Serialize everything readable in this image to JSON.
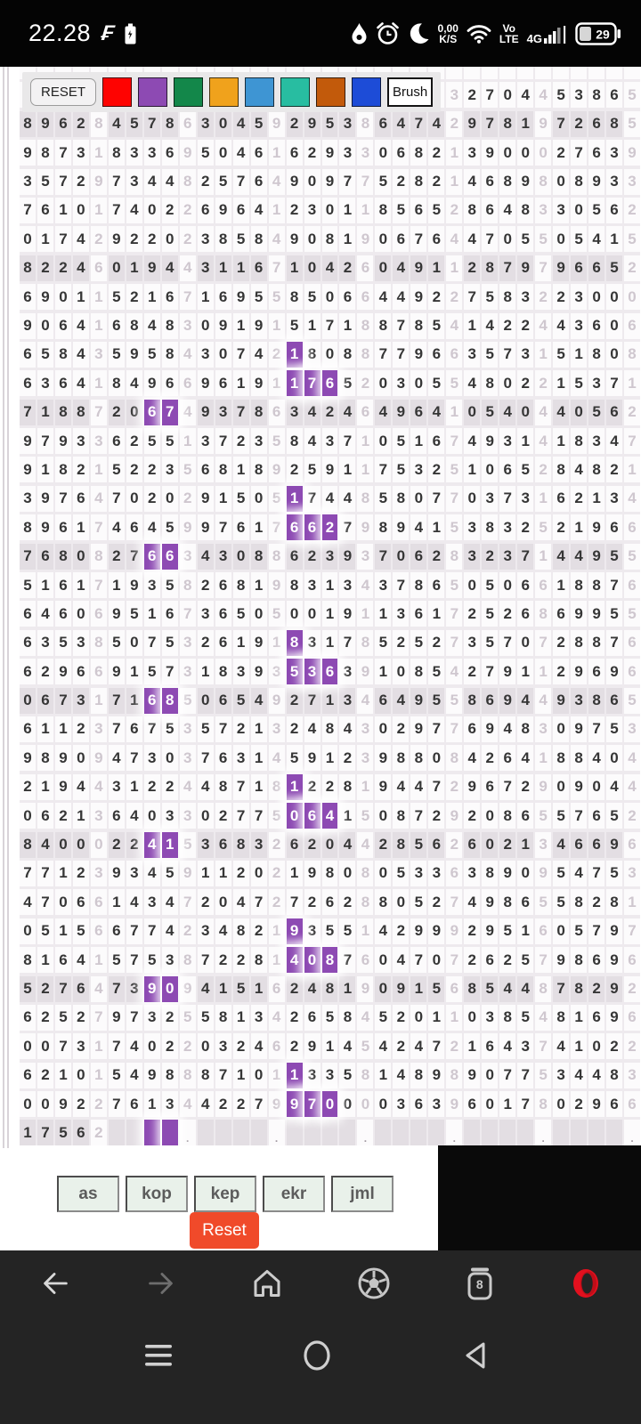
{
  "status_bar": {
    "time": "22.28",
    "f_icon": "₣",
    "speed_line1": "0,00",
    "speed_line2": "K/S",
    "volte_line1": "Vo",
    "volte_line2": "LTE",
    "network": "4G",
    "battery_percent": "29"
  },
  "toolbar": {
    "reset_label": "RESET",
    "brush_label": "Brush",
    "swatches": [
      {
        "name": "red",
        "color": "#fe0301"
      },
      {
        "name": "purple",
        "color": "#8d4ab3"
      },
      {
        "name": "green",
        "color": "#13874a"
      },
      {
        "name": "orange",
        "color": "#f0a21c"
      },
      {
        "name": "light-blue",
        "color": "#3e95d3"
      },
      {
        "name": "teal",
        "color": "#28bda1"
      },
      {
        "name": "chocolate",
        "color": "#c25a0b"
      },
      {
        "name": "blue",
        "color": "#1d4cd7"
      }
    ]
  },
  "colors": {
    "highlight": "#8d4ab3",
    "reset_accent": "#f04a2a"
  },
  "grid": {
    "columns": 35,
    "rows": [
      {
        "d": "                                   ",
        "p": []
      },
      {
        "d": "                       332704453865",
        "p": []
      },
      {
        "d": "89628457863045929538647429781972685",
        "p": []
      },
      {
        "d": "98731833695046162933068213900027639",
        "p": []
      },
      {
        "d": "35729734482576490977528214689808933",
        "p": []
      },
      {
        "d": "76101740226964123011856528648330562",
        "p": []
      },
      {
        "d": "01742922023858490819067644705505415",
        "p": []
      },
      {
        "d": "82246019443116710426049112879796652",
        "p": []
      },
      {
        "d": "69011521671695585066449227583223000",
        "p": []
      },
      {
        "d": "90641684830919151718878541422443606",
        "p": []
      },
      {
        "d": "65843595843074218088779663573151808",
        "p": [
          15
        ]
      },
      {
        "d": "63641849669619117652030554802215371",
        "p": [
          15,
          16,
          17
        ]
      },
      {
        "d": "71887206749378634246496410540440562",
        "p": [
          7,
          8
        ]
      },
      {
        "d": "97933625513723584371051674931418347",
        "p": []
      },
      {
        "d": "91821522356818925911753251065284821",
        "p": []
      },
      {
        "d": "39764702029150517448580770373162134",
        "p": [
          15
        ]
      },
      {
        "d": "89617464599761766279894153832521966",
        "p": [
          15,
          16,
          17
        ]
      },
      {
        "d": "76808276634308862393706283237144955",
        "p": [
          7,
          8
        ]
      },
      {
        "d": "51617193582681983134378650506618876",
        "p": []
      },
      {
        "d": "64606951673650500191136172526869955",
        "p": []
      },
      {
        "d": "63538507532619183178525273570728876",
        "p": [
          15
        ]
      },
      {
        "d": "62966915731839353639108542791129696",
        "p": [
          15,
          16,
          17
        ]
      },
      {
        "d": "06731716850654927134649558694493865",
        "p": [
          7,
          8
        ]
      },
      {
        "d": "61123767535721324843029776948309753",
        "p": []
      },
      {
        "d": "98909473037631459123988084264188404",
        "p": []
      },
      {
        "d": "21944312244871812281944729672909044",
        "p": [
          15
        ]
      },
      {
        "d": "06213640330277506415087292086557652",
        "p": [
          15,
          16,
          17
        ]
      },
      {
        "d": "84000224153683262044285626021346696",
        "p": [
          7,
          8
        ]
      },
      {
        "d": "77123934591120219808053363890954753",
        "p": []
      },
      {
        "d": "47066143472047272628805274986558281",
        "p": []
      },
      {
        "d": "05156677423482193551429992951605797",
        "p": [
          15
        ]
      },
      {
        "d": "81641575387228140876047072625798696",
        "p": [
          15,
          16,
          17
        ]
      },
      {
        "d": "52764739094151624819091568544878292",
        "p": [
          7,
          8
        ]
      },
      {
        "d": "62527973255813426584520110385481696",
        "p": []
      },
      {
        "d": "00731740220324629145424721643741022",
        "p": []
      },
      {
        "d": "62101549888710113358148989077534483",
        "p": [
          15
        ]
      },
      {
        "d": "00922761344227997000036396017802966",
        "p": [
          15,
          16,
          17
        ]
      },
      {
        "d": "17562    .    .    .    .    .    .",
        "p": [
          7,
          8
        ]
      }
    ]
  },
  "footer": {
    "buttons": [
      "as",
      "kop",
      "kep",
      "ekr",
      "jml"
    ],
    "reset_label": "Reset"
  },
  "browser_bar": {
    "tab_count": "8"
  }
}
